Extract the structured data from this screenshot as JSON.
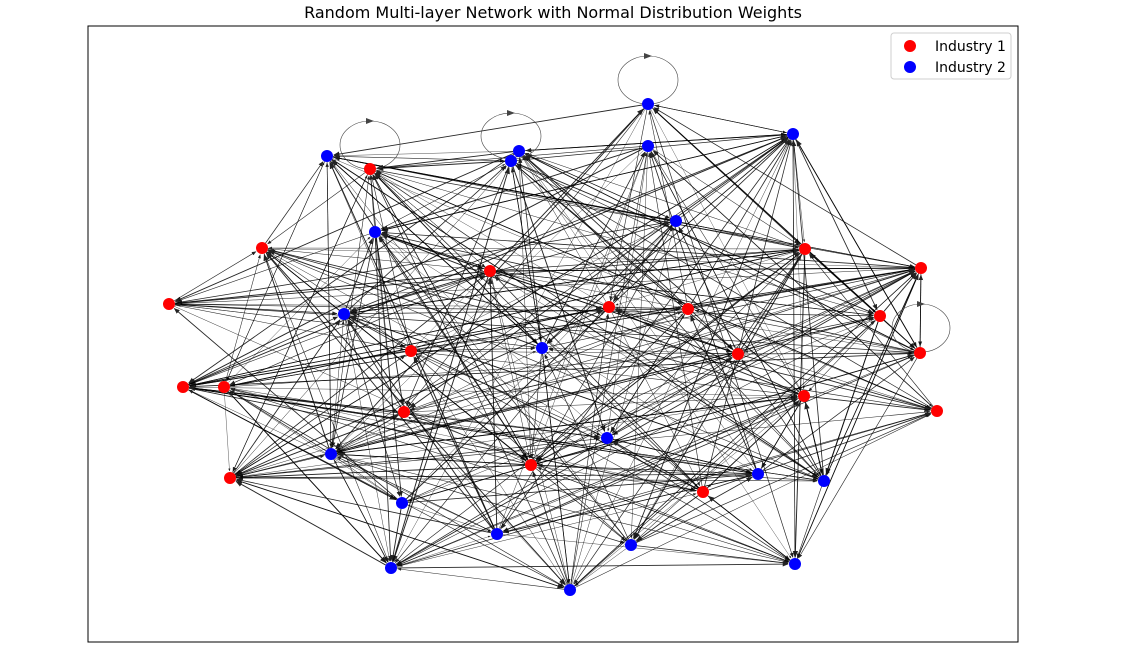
{
  "figure": {
    "title": "Random Multi-layer Network with Normal Distribution Weights"
  },
  "legend": {
    "placement": "top-right",
    "items": [
      {
        "label": "Industry 1",
        "color": "#ff0000"
      },
      {
        "label": "Industry 2",
        "color": "#0000ff"
      }
    ]
  },
  "colors": {
    "edge": "#000000",
    "frame": "#000000",
    "industry_1": "#ff0000",
    "industry_2": "#0000ff"
  }
}
